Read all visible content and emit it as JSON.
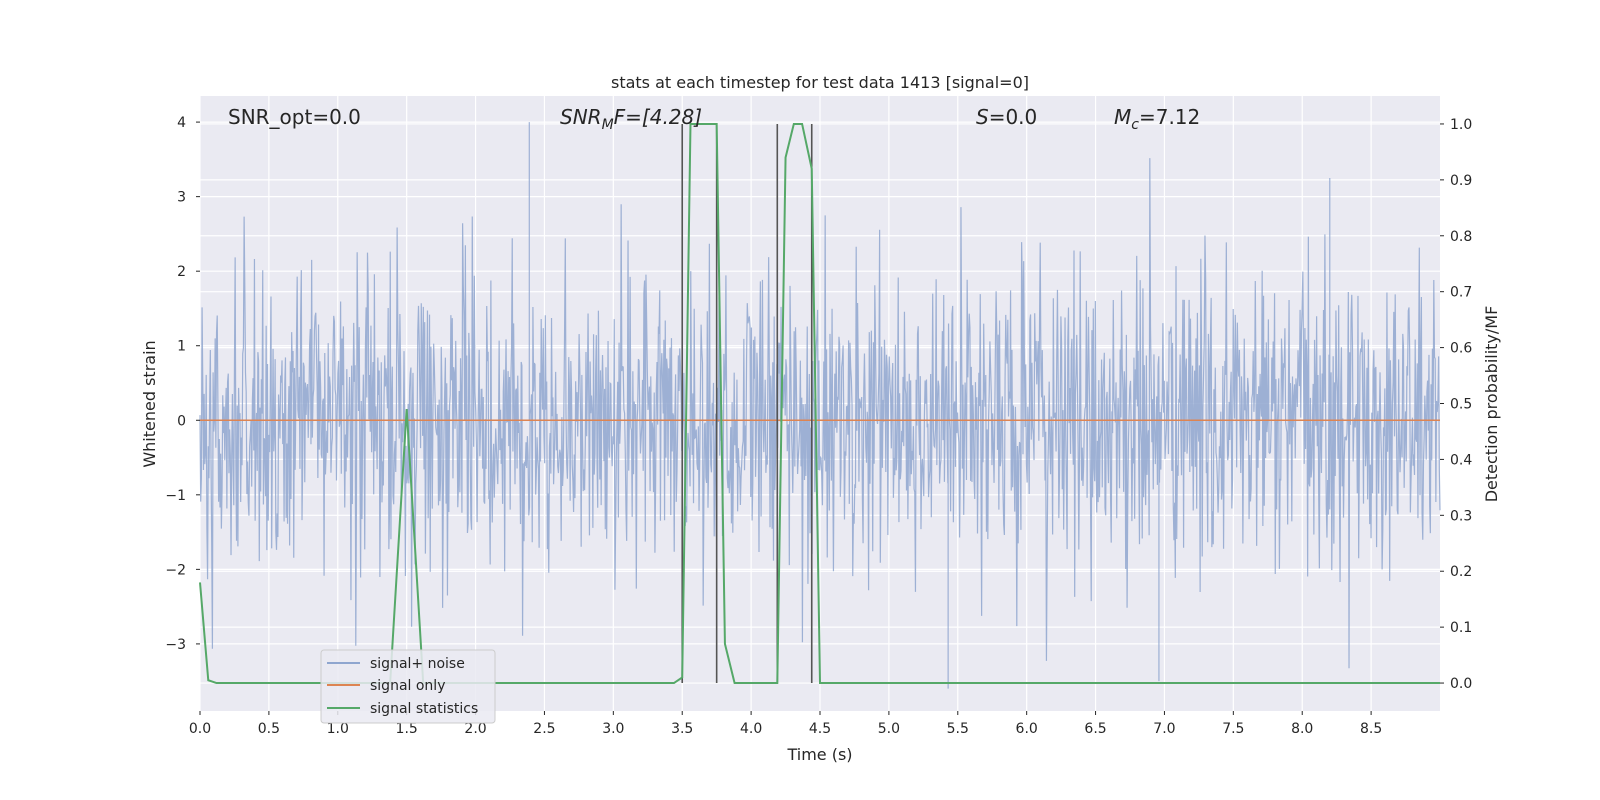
{
  "chart_data": {
    "type": "line",
    "title": "stats at each timestep for test data 1413 [signal=0]",
    "xlabel": "Time (s)",
    "ylabel_left": "Whitened strain",
    "ylabel_right": "Detection probability/MF",
    "xlim": [
      0.0,
      9.0
    ],
    "ylim_left": [
      -3.9,
      4.35
    ],
    "ylim_right": [
      -0.05,
      1.05
    ],
    "xticks": [
      "0.0",
      "0.5",
      "1.0",
      "1.5",
      "2.0",
      "2.5",
      "3.0",
      "3.5",
      "4.0",
      "4.5",
      "5.0",
      "5.5",
      "6.0",
      "6.5",
      "7.0",
      "7.5",
      "8.0",
      "8.5"
    ],
    "yticks_left": [
      "4",
      "3",
      "2",
      "1",
      "0",
      "−1",
      "−2",
      "−3"
    ],
    "yticks_right": [
      "1.0",
      "0.9",
      "0.8",
      "0.7",
      "0.6",
      "0.5",
      "0.4",
      "0.3",
      "0.2",
      "0.1",
      "0.0"
    ],
    "grid": true,
    "legend_position": "lower-left",
    "annotations": {
      "snr_opt": "SNR_opt=0.0",
      "snr_mf_main": "SNR",
      "snr_mf_sub": "M",
      "snr_mf_tail": "F=[4.28]",
      "s_main": "S",
      "s_tail": "=0.0",
      "mc_main": "M",
      "mc_sub": "c",
      "mc_tail": "=7.12"
    },
    "series": [
      {
        "name": "signal+ noise",
        "color": "#8fa6cf",
        "axis": "left",
        "description": "whitened strain noise, amplitude roughly -3.6 to 4.0",
        "amplitude_envelope": [
          -3.6,
          4.0
        ],
        "notable_peaks": [
          {
            "x": 2.39,
            "y": 4.0
          },
          {
            "x": 5.43,
            "y": -3.6
          },
          {
            "x": 6.96,
            "y": -3.5
          },
          {
            "x": 8.2,
            "y": 3.25
          }
        ]
      },
      {
        "name": "signal only",
        "color": "#dd8452",
        "axis": "left",
        "x": [
          0.0,
          9.0
        ],
        "y": [
          0.0,
          0.0
        ]
      },
      {
        "name": "signal statistics",
        "color": "#55a868",
        "axis": "right",
        "x": [
          0.0,
          0.06,
          0.12,
          1.38,
          1.5,
          1.62,
          3.44,
          3.5,
          3.56,
          3.62,
          3.75,
          3.81,
          3.88,
          4.19,
          4.25,
          4.31,
          4.37,
          4.44,
          4.5,
          9.0
        ],
        "y": [
          0.18,
          0.005,
          0.0,
          0.0,
          0.49,
          0.0,
          0.0,
          0.01,
          1.0,
          1.0,
          1.0,
          0.07,
          0.0,
          0.0,
          0.94,
          1.0,
          1.0,
          0.92,
          0.0,
          0.0
        ]
      }
    ],
    "vertical_lines": [
      {
        "x": 3.5,
        "color": "#555555"
      },
      {
        "x": 3.75,
        "color": "#555555"
      },
      {
        "x": 4.19,
        "color": "#555555"
      },
      {
        "x": 4.44,
        "color": "#555555"
      }
    ]
  }
}
